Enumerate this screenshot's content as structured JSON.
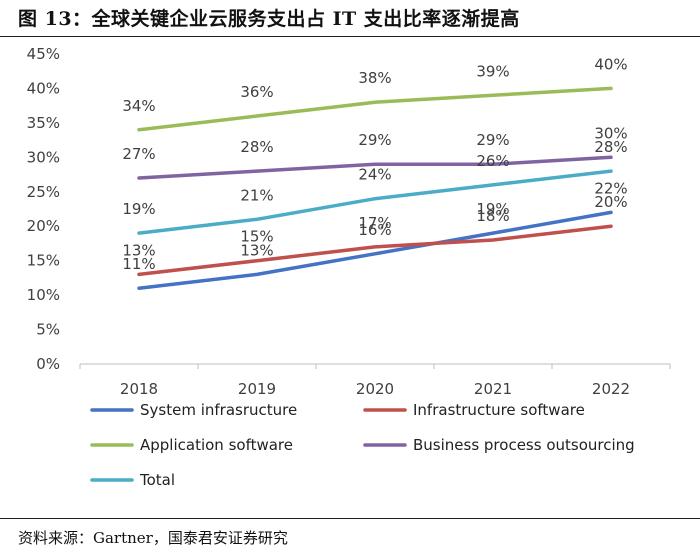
{
  "header": {
    "title": "图 13：全球关键企业云服务支出占 IT 支出比率逐渐提高"
  },
  "footer": {
    "source": "资料来源：Gartner，国泰君安证券研究"
  },
  "chart_data": {
    "type": "line",
    "title": "图 13：全球关键企业云服务支出占 IT 支出比率逐渐提高",
    "xlabel": "",
    "ylabel": "",
    "categories": [
      "2018",
      "2019",
      "2020",
      "2021",
      "2022"
    ],
    "ylim": [
      0,
      45
    ],
    "yticks": [
      "0%",
      "5%",
      "10%",
      "15%",
      "20%",
      "25%",
      "30%",
      "35%",
      "40%",
      "45%"
    ],
    "grid": false,
    "legend_position": "bottom",
    "series": [
      {
        "name": "System infrasructure",
        "color": "#4472C4",
        "values": [
          11,
          13,
          16,
          19,
          22
        ],
        "labels": [
          "11%",
          "13%",
          "16%",
          "19%",
          "22%"
        ]
      },
      {
        "name": "Infrastructure software",
        "color": "#C0504D",
        "values": [
          13,
          15,
          17,
          18,
          20
        ],
        "labels": [
          "13%",
          "15%",
          "17%",
          "18%",
          "20%"
        ]
      },
      {
        "name": "Application software",
        "color": "#9BBB59",
        "values": [
          34,
          36,
          38,
          39,
          40
        ],
        "labels": [
          "34%",
          "36%",
          "38%",
          "39%",
          "40%"
        ]
      },
      {
        "name": "Business process outsourcing",
        "color": "#8064A2",
        "values": [
          27,
          28,
          29,
          29,
          30
        ],
        "labels": [
          "27%",
          "28%",
          "29%",
          "29%",
          "30%"
        ]
      },
      {
        "name": "Total",
        "color": "#4BACC6",
        "values": [
          19,
          21,
          24,
          26,
          28
        ],
        "labels": [
          "19%",
          "21%",
          "24%",
          "26%",
          "28%"
        ]
      }
    ]
  }
}
